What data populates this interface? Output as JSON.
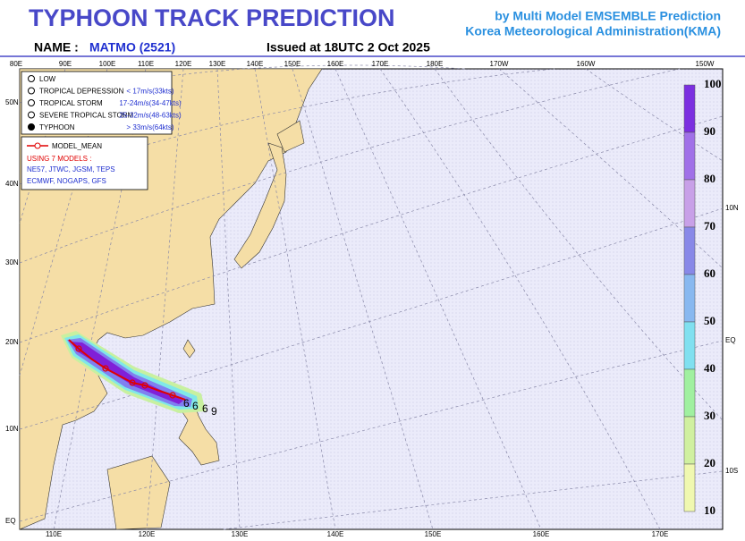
{
  "header": {
    "title": "TYPHOON  TRACK  PREDICTION",
    "credit_1": "by Multi Model EMSEMBLE Prediction",
    "credit_2": "Korea Meteorological Administration(KMA)",
    "name_label": "NAME :",
    "name": "MATMO (2521)",
    "issued": "Issued at  18UTC  2 Oct 2025"
  },
  "map": {
    "top_lon_labels": [
      "80E",
      "90E",
      "100E",
      "110E",
      "120E",
      "130E",
      "140E",
      "150E",
      "160E",
      "170E",
      "180E",
      "170W",
      "160W",
      "150W"
    ],
    "left_lat_labels": [
      "50N",
      "40N",
      "30N",
      "20N",
      "10N",
      "EQ"
    ],
    "right_lat_labels": [
      "10N",
      "EQ",
      "10S"
    ],
    "bottom_lon_labels": [
      "110E",
      "120E",
      "130E",
      "140E",
      "150E",
      "160E",
      "170E"
    ]
  },
  "legend": {
    "intensity": [
      {
        "label": "LOW"
      },
      {
        "label": "TROPICAL DEPRESSION",
        "range": "< 17m/s(33kts)"
      },
      {
        "label": "TROPICAL STORM",
        "range": "17-24m/s(34-47kts)"
      },
      {
        "label": "SEVERE TROPICAL STORM",
        "range": "25-32m/s(48-63kts)"
      },
      {
        "label": "TYPHOON",
        "range": "> 33m/s(64kts)"
      }
    ],
    "mean_label": "MODEL_MEAN",
    "using": "USING 7 MODELS :",
    "models_1": "NE57, JTWC, JGSM, TEPS",
    "models_2": "ECMWF, NOGAPS, GFS"
  },
  "colorbar": {
    "ticks": [
      100,
      90,
      80,
      70,
      60,
      50,
      40,
      30,
      20,
      10
    ]
  }
}
